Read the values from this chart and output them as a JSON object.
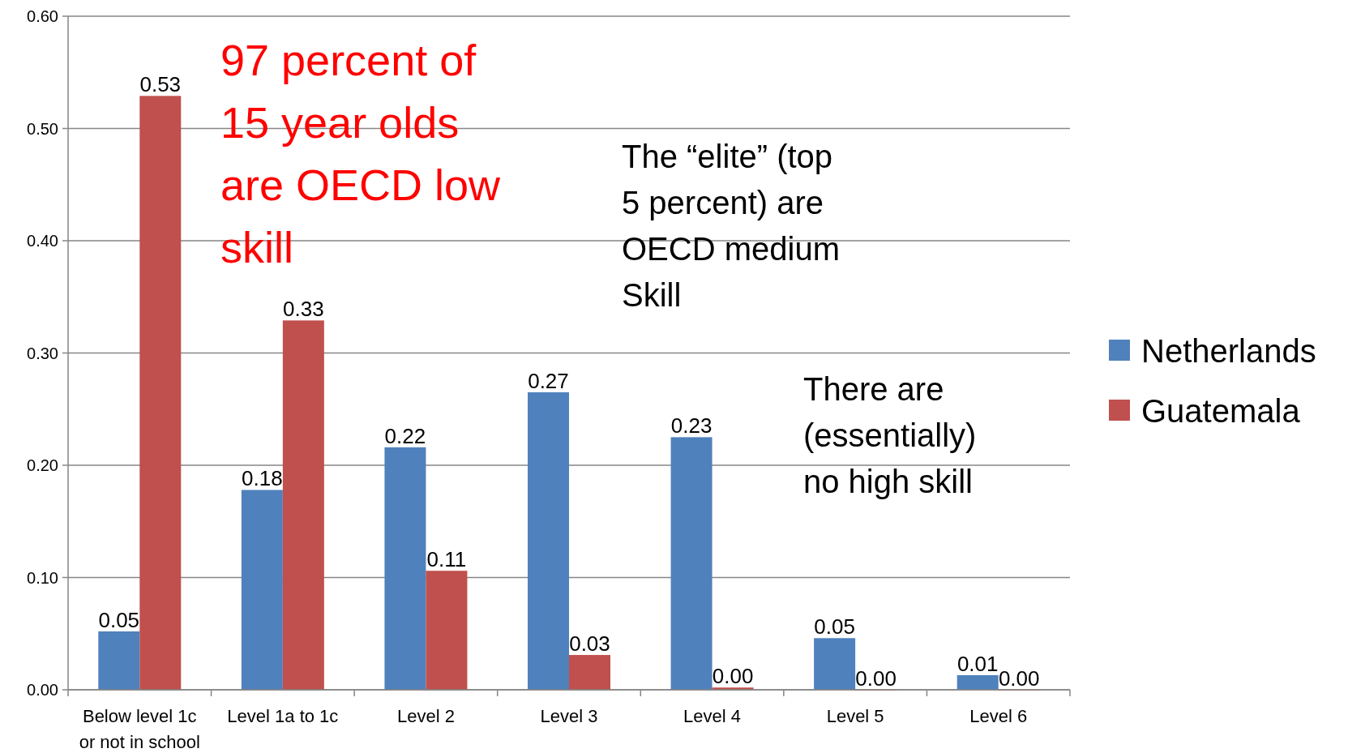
{
  "chart_data": {
    "type": "bar",
    "categories": [
      "Below level 1c or not in school",
      "Level 1a to 1c",
      "Level 2",
      "Level 3",
      "Level 4",
      "Level 5",
      "Level 6"
    ],
    "series": [
      {
        "name": "Netherlands",
        "color": "#4f81bd",
        "values": [
          0.052,
          0.178,
          0.216,
          0.265,
          0.225,
          0.046,
          0.013
        ],
        "value_labels": [
          "0.05",
          "0.18",
          "0.22",
          "0.27",
          "0.23",
          "0.05",
          "0.01"
        ]
      },
      {
        "name": "Guatemala",
        "color": "#c0504d",
        "values": [
          0.529,
          0.329,
          0.106,
          0.031,
          0.002,
          0,
          0
        ],
        "value_labels": [
          "0.53",
          "0.33",
          "0.11",
          "0.03",
          "0.00",
          "0.00",
          "0.00"
        ]
      }
    ],
    "ylim": [
      0,
      0.6
    ],
    "yticks": [
      {
        "value": 0,
        "label": "0.00"
      },
      {
        "value": 0.1,
        "label": "0.10"
      },
      {
        "value": 0.2,
        "label": "0.20"
      },
      {
        "value": 0.3,
        "label": "0.30"
      },
      {
        "value": 0.4,
        "label": "0.40"
      },
      {
        "value": 0.5,
        "label": "0.50"
      },
      {
        "value": 0.6,
        "label": "0.60"
      }
    ],
    "grid": "y",
    "legend": "right",
    "annotations": [
      "97 percent of 15 year olds are OECD low skill",
      "The “elite” (top 5 percent) are OECD medium Skill",
      "There are (essentially) no high skill"
    ]
  }
}
